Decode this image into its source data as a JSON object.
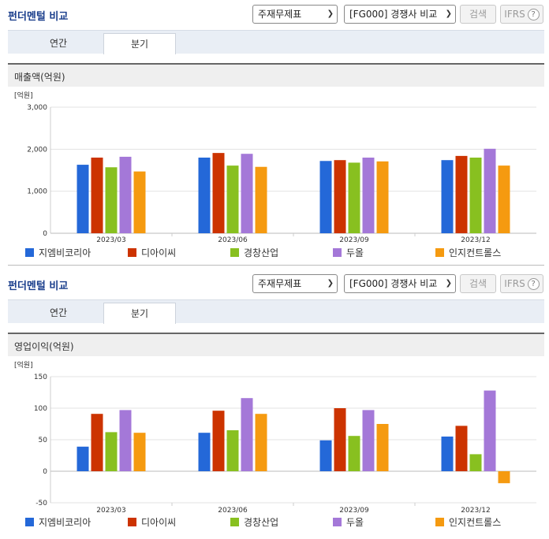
{
  "panels": [
    {
      "title": "펀더멘털 비교",
      "select1": "주재무제표",
      "select2": "[FG000] 경쟁사 비교",
      "search_label": "검색",
      "ifrs_label": "IFRS",
      "help_glyph": "?",
      "tabs": [
        "연간",
        "분기"
      ],
      "active_tab": "분기",
      "metric_label": "매출액(억원)"
    },
    {
      "title": "펀더멘털 비교",
      "select1": "주재무제표",
      "select2": "[FG000] 경쟁사 비교",
      "search_label": "검색",
      "ifrs_label": "IFRS",
      "help_glyph": "?",
      "tabs": [
        "연간",
        "분기"
      ],
      "active_tab": "분기",
      "metric_label": "영업이익(억원)"
    }
  ],
  "colors": [
    "#2468d8",
    "#cc3300",
    "#88c020",
    "#a478d8",
    "#f59a10"
  ],
  "chart_data": [
    {
      "type": "bar",
      "unit_label": "[억원]",
      "categories": [
        "2023/03",
        "2023/06",
        "2023/09",
        "2023/12"
      ],
      "ylim": [
        0,
        3000
      ],
      "yticks": [
        0,
        1000,
        2000,
        3000
      ],
      "ytick_labels": [
        "0",
        "1,000",
        "2,000",
        "3,000"
      ],
      "grid": true,
      "legend_position": "bottom",
      "series": [
        {
          "name": "지엠비코리아",
          "values": [
            1630,
            1800,
            1720,
            1740
          ]
        },
        {
          "name": "디아이씨",
          "values": [
            1800,
            1910,
            1740,
            1840
          ]
        },
        {
          "name": "경창산업",
          "values": [
            1570,
            1610,
            1680,
            1800
          ]
        },
        {
          "name": "두올",
          "values": [
            1820,
            1890,
            1800,
            2010
          ]
        },
        {
          "name": "인지컨트롤스",
          "values": [
            1470,
            1580,
            1710,
            1610
          ]
        }
      ]
    },
    {
      "type": "bar",
      "unit_label": "[억원]",
      "categories": [
        "2023/03",
        "2023/06",
        "2023/09",
        "2023/12"
      ],
      "ylim": [
        -50,
        150
      ],
      "yticks": [
        -50,
        0,
        50,
        100,
        150
      ],
      "ytick_labels": [
        "-50",
        "0",
        "50",
        "100",
        "150"
      ],
      "grid": true,
      "legend_position": "bottom",
      "series": [
        {
          "name": "지엠비코리아",
          "values": [
            39,
            61,
            49,
            55
          ]
        },
        {
          "name": "디아이씨",
          "values": [
            91,
            96,
            100,
            72
          ]
        },
        {
          "name": "경창산업",
          "values": [
            62,
            65,
            56,
            27
          ]
        },
        {
          "name": "두올",
          "values": [
            97,
            116,
            97,
            128
          ]
        },
        {
          "name": "인지컨트롤스",
          "values": [
            61,
            91,
            75,
            -19
          ]
        }
      ]
    }
  ]
}
